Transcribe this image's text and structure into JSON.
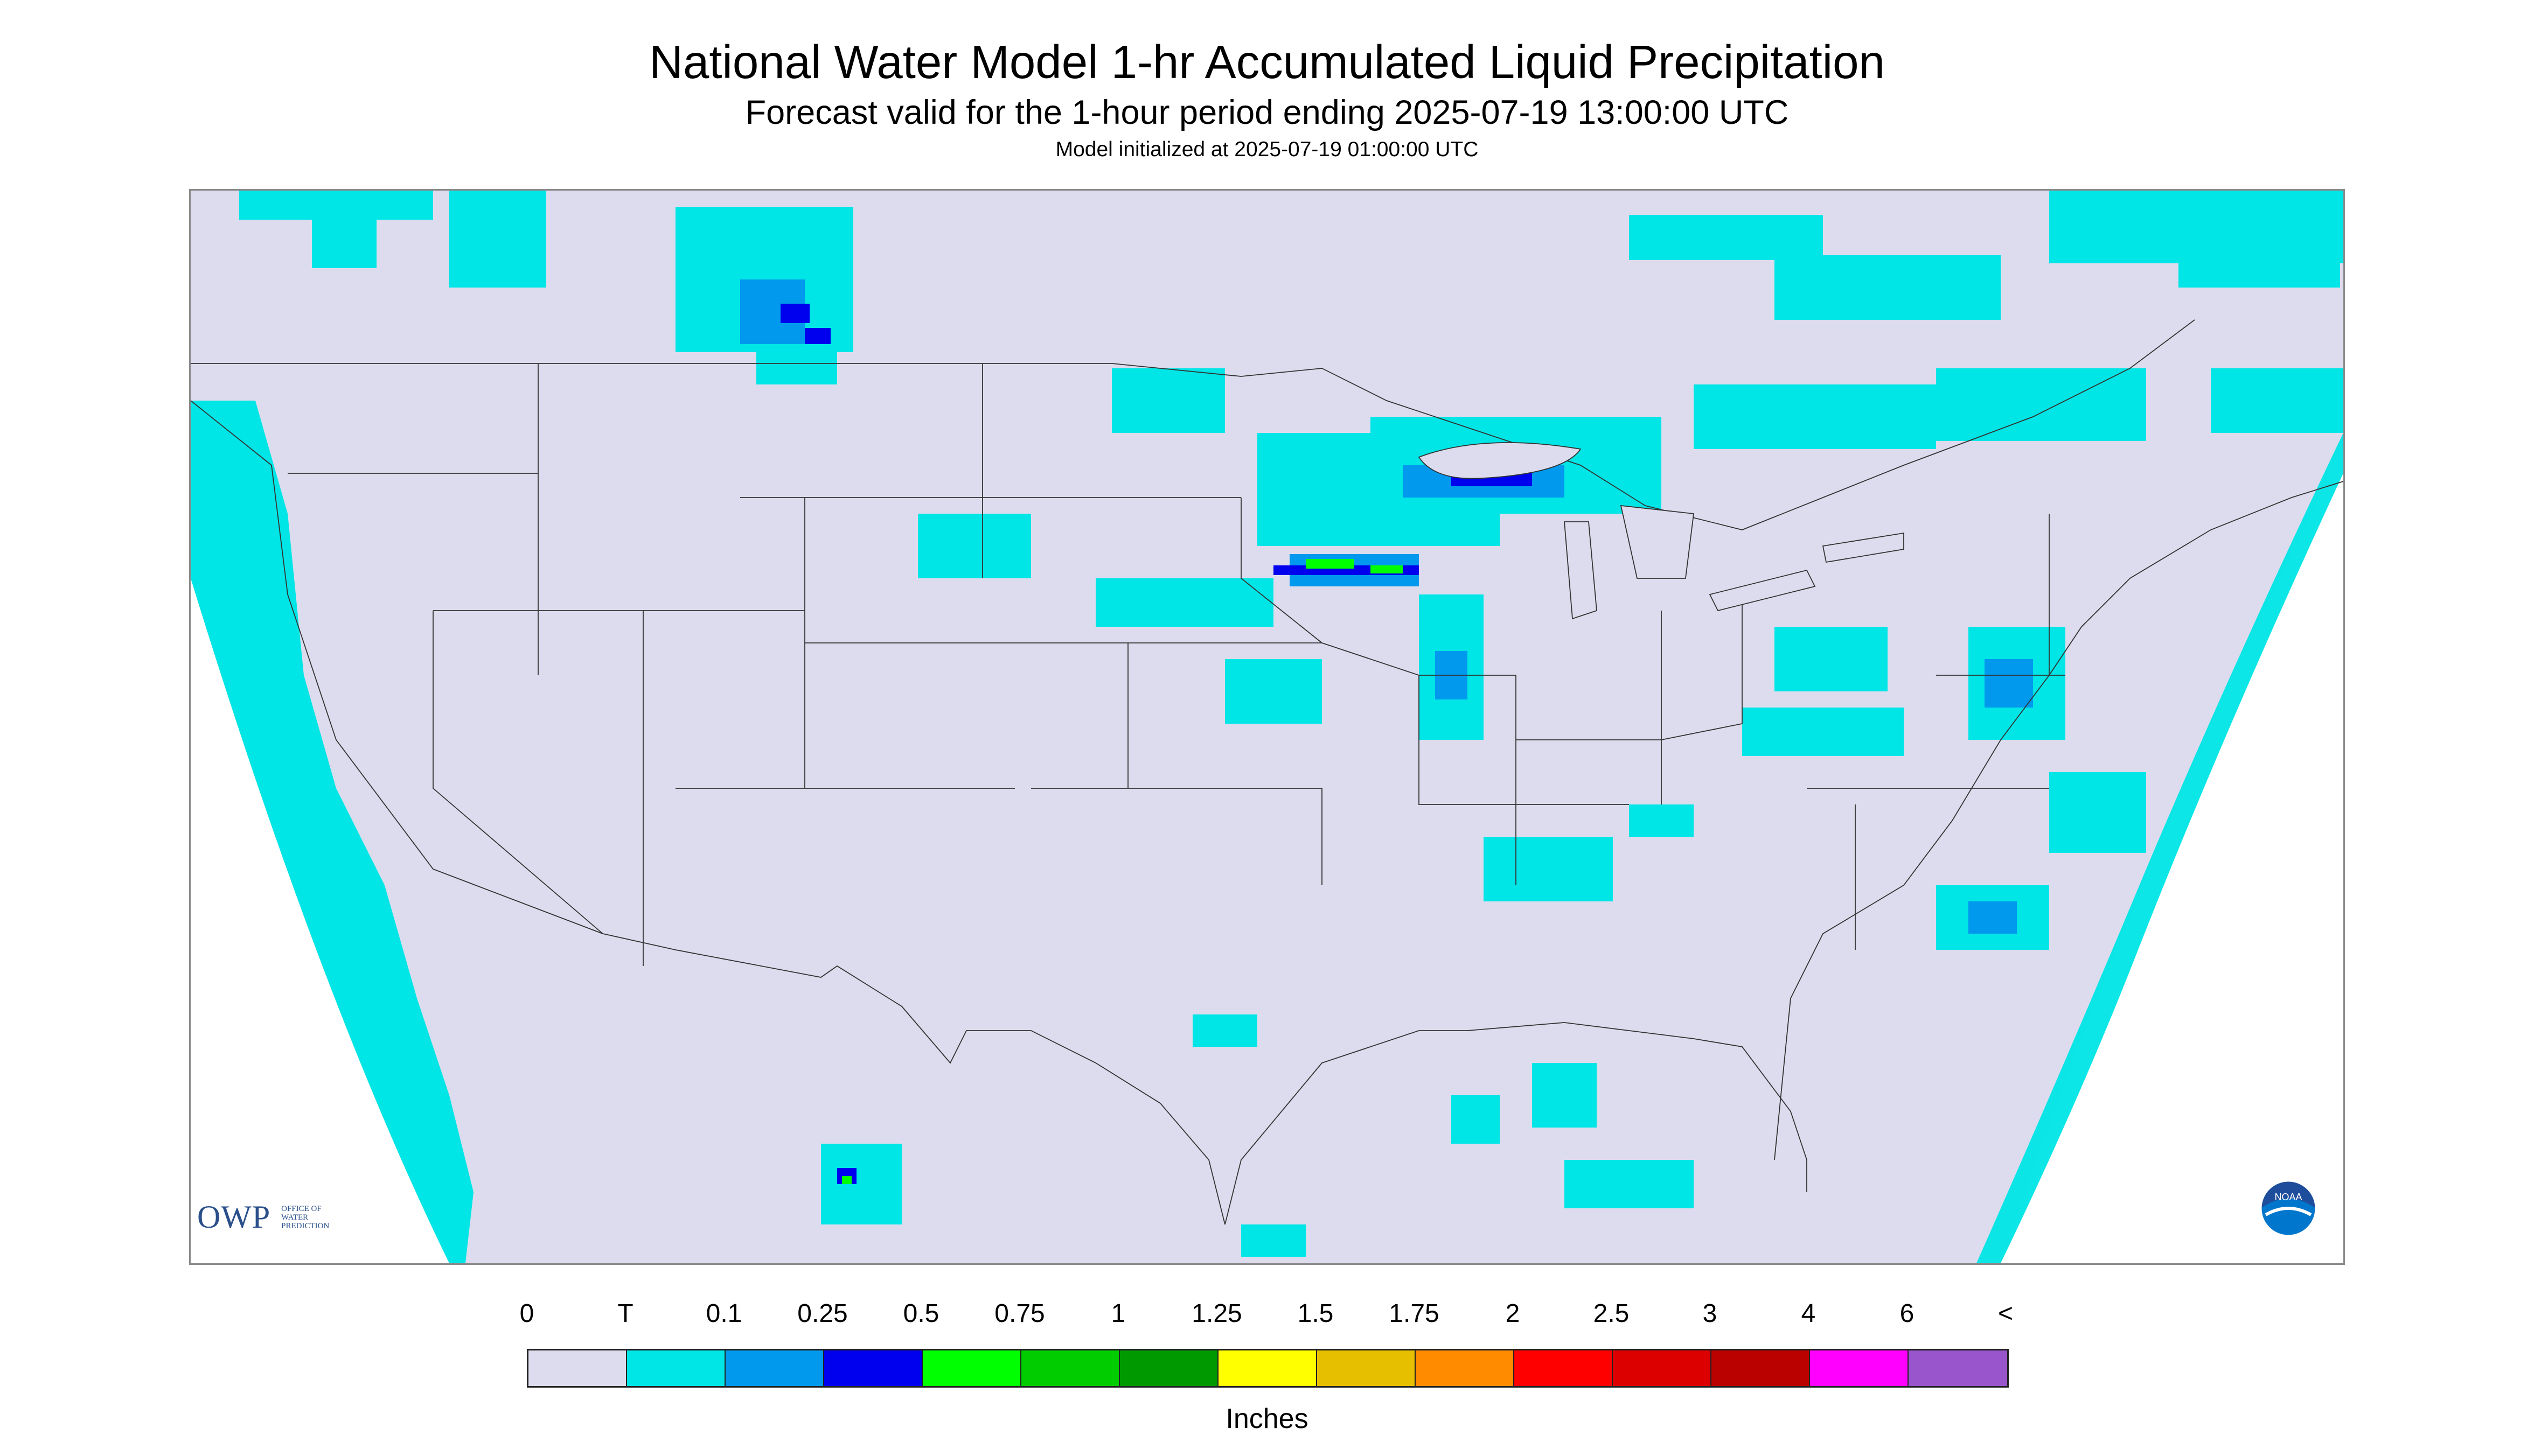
{
  "header": {
    "title": "National Water Model 1-hr Accumulated Liquid Precipitation",
    "subtitle": "Forecast valid for the 1-hour period ending 2025-07-19 13:00:00 UTC",
    "init": "Model initialized at 2025-07-19 01:00:00 UTC"
  },
  "logos": {
    "owp_main": "OWP",
    "owp_sub_1": "Office of",
    "owp_sub_2": "Water",
    "owp_sub_3": "Prediction",
    "noaa": "NOAA"
  },
  "legend": {
    "ticks": [
      "0",
      "T",
      "0.1",
      "0.25",
      "0.5",
      "0.75",
      "1",
      "1.25",
      "1.5",
      "1.75",
      "2",
      "2.5",
      "3",
      "4",
      "6",
      "<"
    ],
    "colors": [
      "#dcdcee",
      "#00e5e5",
      "#0099ee",
      "#0000ee",
      "#00ff00",
      "#00cc00",
      "#009900",
      "#ffff00",
      "#e6bf00",
      "#ff8c00",
      "#ff0000",
      "#dd0000",
      "#bb0000",
      "#ff00ff",
      "#9955cc"
    ],
    "units": "Inches"
  },
  "map": {
    "background_color": "#dcdcee",
    "outside_domain_color": "#ffffff",
    "trace_color": "#00e5e5",
    "light_color": "#0099ee",
    "medium_color": "#0000ee",
    "heavy_color": "#00ff00"
  }
}
